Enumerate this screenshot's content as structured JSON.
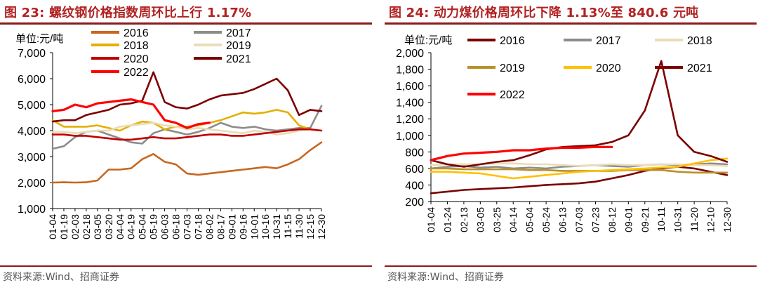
{
  "left": {
    "figure_title": "图 23:  螺纹钢价格指数周环比上行 1.17%",
    "source": "资料来源:Wind、招商证券"
  },
  "right": {
    "figure_title": "图 24:  动力煤价格周环比下降 1.13%至 840.6 元吨",
    "source": "资料来源:Wind、招商证券"
  },
  "chart_data": [
    {
      "type": "line",
      "title": "螺纹钢价格指数周环比上行 1.17%",
      "ylabel": "单位:元/吨",
      "ylim": [
        1000,
        7000
      ],
      "yticks": [
        1000,
        2000,
        3000,
        4000,
        5000,
        6000,
        7000
      ],
      "ytick_labels": [
        "1,000",
        "2,000",
        "3,000",
        "4,000",
        "5,000",
        "6,000",
        "7,000"
      ],
      "categories": [
        "01-04",
        "01-19",
        "02-03",
        "02-18",
        "03-05",
        "03-20",
        "04-04",
        "04-19",
        "05-04",
        "05-19",
        "06-03",
        "06-18",
        "07-03",
        "07-18",
        "08-02",
        "08-17",
        "09-01",
        "09-16",
        "10-01",
        "10-16",
        "10-31",
        "11-15",
        "11-30",
        "12-15",
        "12-30"
      ],
      "series": [
        {
          "name": "2016",
          "color": "#c8671e",
          "values": [
            2000,
            2010,
            2000,
            2010,
            2080,
            2500,
            2500,
            2550,
            2900,
            3100,
            2800,
            2700,
            2350,
            2300,
            2350,
            2400,
            2450,
            2500,
            2550,
            2600,
            2550,
            2700,
            2900,
            3250,
            3550
          ]
        },
        {
          "name": "2017",
          "color": "#8c8c8c",
          "values": [
            3300,
            3400,
            3750,
            3950,
            4000,
            3850,
            3700,
            3550,
            3500,
            3900,
            4050,
            3950,
            3850,
            3950,
            4100,
            4300,
            4150,
            4100,
            4150,
            4050,
            4000,
            4050,
            4100,
            4100,
            4950
          ]
        },
        {
          "name": "2018",
          "color": "#e3b000",
          "values": [
            4400,
            4150,
            4150,
            4150,
            4200,
            4100,
            4000,
            4200,
            4350,
            4300,
            4050,
            4150,
            4150,
            4200,
            4300,
            4400,
            4550,
            4700,
            4650,
            4700,
            4800,
            4700,
            4200,
            4050,
            4000
          ]
        },
        {
          "name": "2019",
          "color": "#e9dcb7",
          "values": [
            3950,
            3950,
            3900,
            3950,
            4000,
            4000,
            4150,
            4200,
            4250,
            4300,
            4200,
            4150,
            4050,
            4100,
            4050,
            4000,
            3950,
            3900,
            4000,
            3950,
            3850,
            3900,
            4000,
            4050,
            4000
          ]
        },
        {
          "name": "2020",
          "color": "#c00000",
          "values": [
            3850,
            3850,
            3800,
            3800,
            3750,
            3700,
            3650,
            3650,
            3700,
            3750,
            3700,
            3700,
            3750,
            3800,
            3850,
            3850,
            3800,
            3800,
            3850,
            3900,
            3950,
            4000,
            4050,
            4050,
            4000
          ]
        },
        {
          "name": "2021",
          "color": "#7b0000",
          "values": [
            4350,
            4400,
            4400,
            4600,
            4700,
            4800,
            5000,
            5050,
            5150,
            6250,
            5100,
            4900,
            4850,
            5000,
            5200,
            5350,
            5400,
            5450,
            5600,
            5800,
            6000,
            5550,
            4600,
            4800,
            4750
          ]
        },
        {
          "name": "2022",
          "color": "#ff0000",
          "values": [
            4750,
            4800,
            5000,
            4900,
            5050,
            5100,
            5150,
            5200,
            5100,
            5000,
            4400,
            4300,
            4100,
            4250,
            4300,
            null,
            null,
            null,
            null,
            null,
            null,
            null,
            null,
            null,
            null
          ]
        }
      ],
      "legend_position": "top"
    },
    {
      "type": "line",
      "title": "动力煤价格周环比下降 1.13%至 840.6 元吨",
      "ylabel": "单位:元/吨",
      "ylim": [
        200,
        2000
      ],
      "yticks": [
        200,
        400,
        600,
        800,
        1000,
        1200,
        1400,
        1600,
        1800,
        2000
      ],
      "ytick_labels": [
        "200",
        "400",
        "600",
        "800",
        "1,000",
        "1,200",
        "1,400",
        "1,600",
        "1,800",
        "2,000"
      ],
      "categories": [
        "01-04",
        "01-24",
        "02-13",
        "03-05",
        "03-25",
        "04-14",
        "05-04",
        "05-24",
        "06-13",
        "07-03",
        "07-23",
        "08-12",
        "09-01",
        "09-21",
        "10-11",
        "10-31",
        "11-20",
        "12-10",
        "12-30"
      ],
      "series": [
        {
          "name": "2016",
          "color": "#7b0000",
          "values": [
            300,
            320,
            340,
            350,
            360,
            370,
            385,
            400,
            410,
            420,
            440,
            480,
            520,
            570,
            600,
            620,
            600,
            560,
            520
          ]
        },
        {
          "name": "2017",
          "color": "#8c8c8c",
          "values": [
            600,
            620,
            630,
            610,
            620,
            600,
            610,
            600,
            620,
            630,
            640,
            630,
            620,
            640,
            650,
            640,
            650,
            660,
            650
          ]
        },
        {
          "name": "2018",
          "color": "#e9dcb7",
          "values": [
            640,
            650,
            650,
            650,
            660,
            660,
            650,
            650,
            640,
            630,
            640,
            650,
            640,
            640,
            650,
            650,
            640,
            640,
            630
          ]
        },
        {
          "name": "2019",
          "color": "#b8912b",
          "values": [
            600,
            600,
            590,
            590,
            590,
            590,
            580,
            580,
            570,
            570,
            570,
            570,
            580,
            580,
            580,
            560,
            550,
            550,
            550
          ]
        },
        {
          "name": "2020",
          "color": "#ffc000",
          "values": [
            560,
            560,
            550,
            540,
            510,
            480,
            500,
            520,
            540,
            560,
            570,
            580,
            590,
            600,
            610,
            620,
            660,
            700,
            720
          ]
        },
        {
          "name": "2021",
          "color": "#7b0000",
          "values": [
            700,
            650,
            620,
            650,
            680,
            700,
            760,
            830,
            860,
            870,
            880,
            920,
            1000,
            1300,
            1900,
            1000,
            800,
            750,
            680
          ]
        },
        {
          "name": "2022",
          "color": "#ff0000",
          "values": [
            700,
            750,
            780,
            790,
            800,
            820,
            820,
            840,
            850,
            850,
            860,
            860,
            null,
            null,
            null,
            null,
            null,
            null,
            null
          ]
        }
      ],
      "legend_position": "top"
    }
  ]
}
